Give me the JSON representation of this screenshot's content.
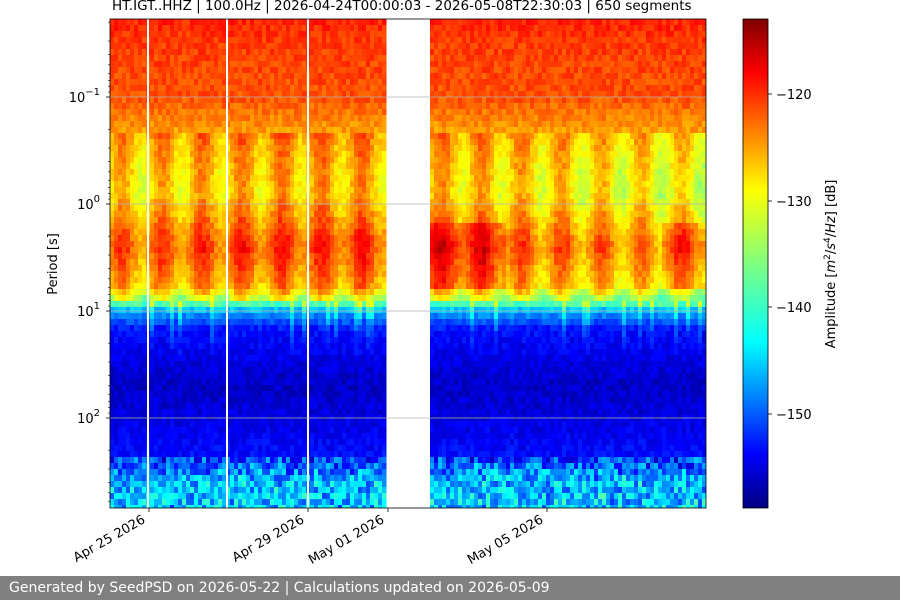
{
  "title": "HT.IGT..HHZ | 100.0Hz | 2026-04-24T00:00:03 - 2026-05-08T22:30:03 | 650 segments",
  "footer": "Generated by SeedPSD on 2026-05-22 | Calculations updated on 2026-05-09",
  "chart_data": {
    "type": "heatmap",
    "title": "HT.IGT..HHZ | 100.0Hz | 2026-04-24T00:00:03 - 2026-05-08T22:30:03 | 650 segments",
    "xlabel": "",
    "ylabel": "Period [s]",
    "y_scale": "log",
    "y_inverted": true,
    "ylim": [
      0.02,
      600
    ],
    "xlim": [
      "2026-04-24T00:00:03",
      "2026-05-08T22:30:03"
    ],
    "x_ticks": [
      "Apr 25 2026",
      "Apr 29 2026",
      "May 01 2026",
      "May 05 2026"
    ],
    "y_ticks": [
      "10^-1",
      "10^0",
      "10^1",
      "10^2"
    ],
    "grid": true,
    "data_gap": [
      "2026-05-01",
      "2026-05-02"
    ],
    "colorbar": {
      "label": "Amplitude [m^2/s^4/Hz] [dB]",
      "ticks": [
        -120,
        -130,
        -140,
        -150
      ],
      "range": [
        -158,
        -114
      ],
      "colormap": "jet"
    },
    "psd_profile": [
      {
        "period": 0.02,
        "amplitude_db": -121
      },
      {
        "period": 0.03,
        "amplitude_db": -122
      },
      {
        "period": 0.1,
        "amplitude_db": -123
      },
      {
        "period": 0.3,
        "amplitude_db": -128
      },
      {
        "period": 0.8,
        "amplitude_db": -130
      },
      {
        "period": 2.5,
        "amplitude_db": -124
      },
      {
        "period": 6,
        "amplitude_db": -128
      },
      {
        "period": 8,
        "amplitude_db": -135
      },
      {
        "period": 10,
        "amplitude_db": -145
      },
      {
        "period": 15,
        "amplitude_db": -152
      },
      {
        "period": 50,
        "amplitude_db": -155
      },
      {
        "period": 250,
        "amplitude_db": -152
      },
      {
        "period": 400,
        "amplitude_db": -146
      }
    ]
  }
}
